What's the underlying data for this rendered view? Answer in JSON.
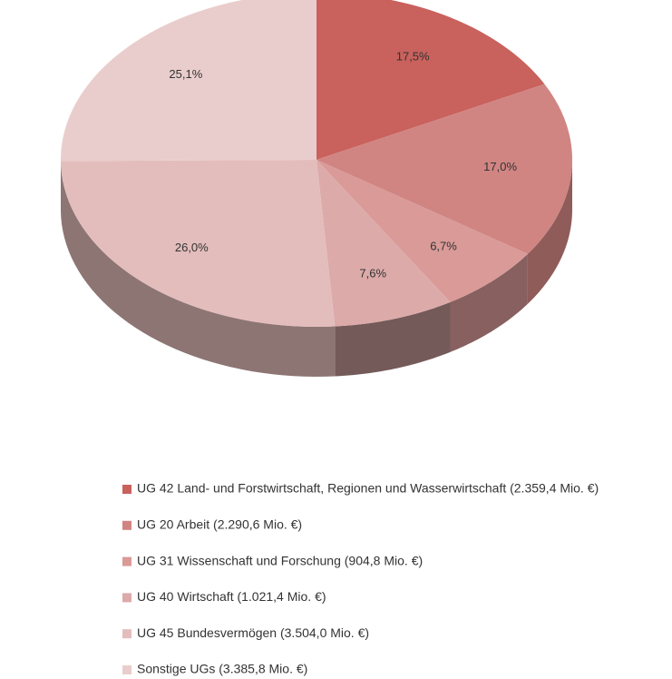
{
  "chart_data": {
    "type": "pie",
    "categories": [
      "UG 42 Land- und Forstwirtschaft, Regionen und Wasserwirtschaft (2.359,4 Mio. €)",
      "UG 20 Arbeit (2.290,6 Mio. €)",
      "UG 31 Wissenschaft und Forschung (904,8 Mio. €)",
      "UG 40 Wirtschaft (1.021,4 Mio. €)",
      "UG 45 Bundesvermögen (3.504,0 Mio. €)",
      "Sonstige UGs (3.385,8 Mio. €)"
    ],
    "values": [
      17.5,
      17.0,
      6.7,
      7.6,
      26.0,
      25.1
    ],
    "value_labels": [
      "17,5%",
      "17,0%",
      "6,7%",
      "7,6%",
      "26,0%",
      "25,1%"
    ],
    "colors": [
      "#c9615d",
      "#d08582",
      "#d99a98",
      "#dcaaa9",
      "#e3bdbc",
      "#e9cdcc"
    ],
    "legend": "bottom"
  }
}
